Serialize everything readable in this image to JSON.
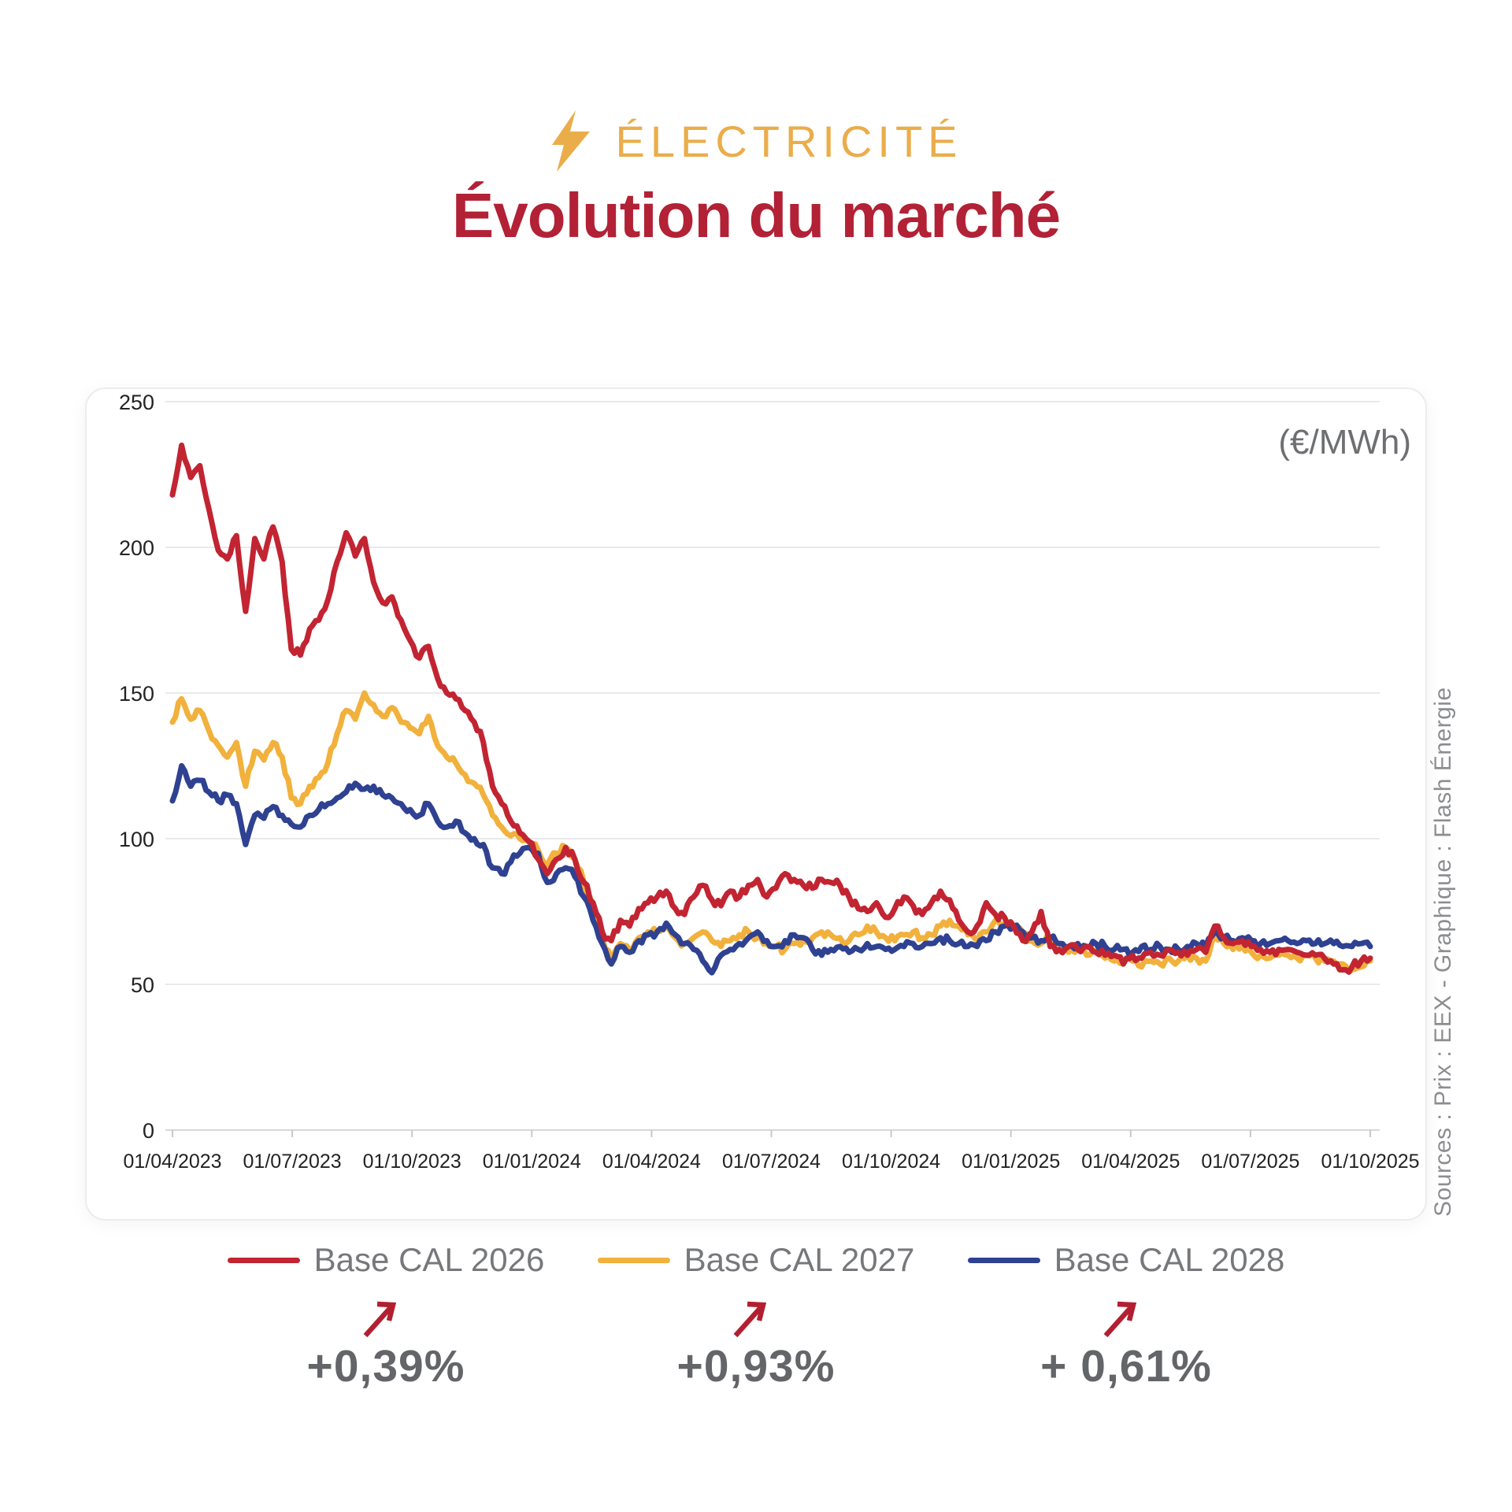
{
  "header": {
    "category": "ÉLECTRICITÉ",
    "title": "Évolution du marché"
  },
  "chart": {
    "unit_label": "(€/MWh)",
    "source_note": "Sources : Prix : EEX -  Graphique : Flash Énergie"
  },
  "colors": {
    "accent_gold": "#EAAD4A",
    "accent_red": "#B22135",
    "series_red": "#C22432",
    "series_yellow": "#F1B13C",
    "series_blue": "#2F4191",
    "gridline": "#E9E9EC",
    "axis_text": "#232325",
    "legend_text": "#77787B",
    "stat_text": "#636568"
  },
  "chart_data": {
    "type": "line",
    "title": "Évolution du marché",
    "unit": "€/MWh",
    "sampling": "weekly",
    "x_range": [
      "01/04/2023",
      "01/10/2025"
    ],
    "x_tick_labels": [
      "01/04/2023",
      "01/07/2023",
      "01/10/2023",
      "01/01/2024",
      "01/04/2024",
      "01/07/2024",
      "01/10/2024",
      "01/01/2025",
      "01/04/2025",
      "01/07/2025",
      "01/10/2025"
    ],
    "y_ticks": [
      0,
      50,
      100,
      150,
      200,
      250
    ],
    "ylim": [
      0,
      250
    ],
    "grid": "horizontal",
    "legend_position": "bottom",
    "series": [
      {
        "name": "Base CAL 2026",
        "color": "#C22432",
        "change_pct": "+0,39%",
        "values": [
          218,
          235,
          224,
          228,
          213,
          199,
          196,
          204,
          178,
          203,
          196,
          207,
          195,
          165,
          163,
          172,
          175,
          182,
          195,
          205,
          197,
          203,
          188,
          181,
          183,
          175,
          168,
          162,
          166,
          155,
          150,
          148,
          144,
          140,
          133,
          118,
          112,
          106,
          102,
          99,
          93,
          88,
          93,
          97,
          93,
          85,
          78,
          68,
          65,
          72,
          70,
          76,
          78,
          80,
          82,
          76,
          74,
          80,
          84,
          79,
          77,
          82,
          80,
          84,
          86,
          80,
          83,
          88,
          86,
          84,
          83,
          86,
          85,
          84,
          80,
          76,
          75,
          78,
          73,
          76,
          80,
          77,
          74,
          78,
          82,
          79,
          72,
          68,
          70,
          78,
          74,
          73,
          70,
          65,
          68,
          75,
          63,
          62,
          63,
          62,
          63,
          61,
          60,
          60,
          57,
          60,
          59,
          61,
          60,
          62,
          61,
          60,
          62,
          61,
          70,
          66,
          64,
          65,
          63,
          62,
          61,
          62,
          62,
          61,
          60,
          60,
          59,
          57,
          55,
          56,
          58,
          59
        ]
      },
      {
        "name": "Base CAL 2027",
        "color": "#F1B13C",
        "change_pct": "+0,93%",
        "values": [
          140,
          148,
          141,
          144,
          137,
          132,
          128,
          133,
          118,
          130,
          127,
          133,
          128,
          114,
          112,
          118,
          121,
          126,
          136,
          144,
          141,
          150,
          146,
          142,
          145,
          140,
          138,
          136,
          142,
          132,
          128,
          126,
          122,
          119,
          115,
          108,
          104,
          101,
          100,
          99,
          96,
          91,
          95,
          97,
          93,
          85,
          76,
          66,
          58,
          64,
          62,
          66,
          68,
          68,
          70,
          66,
          64,
          66,
          68,
          65,
          63,
          65,
          67,
          68,
          66,
          64,
          63,
          62,
          64,
          65,
          66,
          68,
          67,
          66,
          65,
          67,
          70,
          68,
          66,
          65,
          67,
          68,
          66,
          67,
          70,
          72,
          70,
          67,
          65,
          68,
          72,
          71,
          70,
          68,
          65,
          64,
          66,
          62,
          61,
          62,
          60,
          61,
          59,
          58,
          57,
          58,
          56,
          58,
          57,
          59,
          58,
          60,
          59,
          58,
          67,
          64,
          62,
          63,
          61,
          60,
          59,
          60,
          60,
          59,
          60,
          59,
          58,
          58,
          57,
          55,
          56,
          58
        ]
      },
      {
        "name": "Base CAL 2028",
        "color": "#2F4191",
        "change_pct": "+ 0,61%",
        "values": [
          113,
          125,
          118,
          120,
          116,
          113,
          115,
          112,
          98,
          108,
          107,
          111,
          108,
          105,
          104,
          108,
          110,
          112,
          114,
          116,
          119,
          117,
          118,
          115,
          114,
          112,
          110,
          108,
          112,
          106,
          104,
          106,
          102,
          100,
          98,
          90,
          88,
          92,
          95,
          97,
          95,
          85,
          88,
          90,
          87,
          80,
          72,
          64,
          57,
          63,
          61,
          65,
          67,
          68,
          71,
          67,
          64,
          62,
          58,
          54,
          60,
          62,
          64,
          66,
          68,
          65,
          63,
          65,
          67,
          66,
          62,
          60,
          62,
          63,
          61,
          62,
          64,
          63,
          62,
          62,
          63,
          64,
          63,
          64,
          66,
          65,
          64,
          63,
          63,
          65,
          68,
          70,
          70,
          68,
          66,
          65,
          66,
          64,
          63,
          64,
          63,
          64,
          63,
          62,
          62,
          61,
          63,
          62,
          63,
          62,
          62,
          63,
          64,
          63,
          68,
          66,
          65,
          66,
          65,
          64,
          64,
          65,
          65,
          64,
          65,
          64,
          64,
          64,
          63,
          63,
          64,
          63
        ]
      }
    ]
  }
}
